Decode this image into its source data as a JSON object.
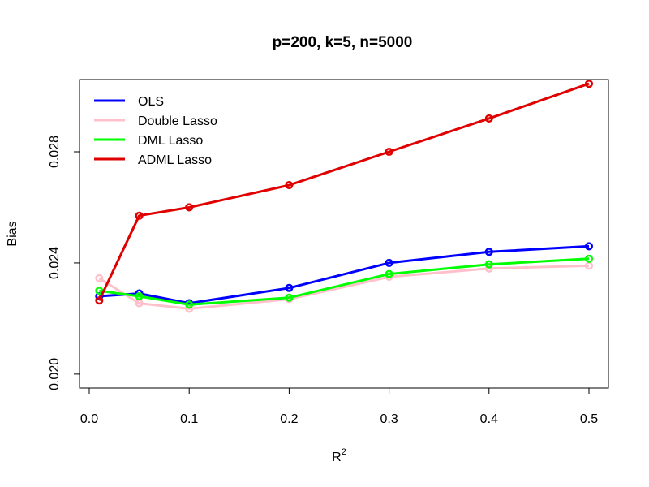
{
  "chart_data": {
    "type": "line",
    "title": "p=200, k=5, n=5000",
    "xlabel": "R",
    "xlabel_superscript": "2",
    "ylabel": "Bias",
    "x": [
      0.01,
      0.05,
      0.1,
      0.2,
      0.3,
      0.4,
      0.5
    ],
    "xlim": [
      0.0,
      0.5
    ],
    "ylim": [
      0.0195,
      0.0306
    ],
    "x_ticks": [
      "0.0",
      "0.1",
      "0.2",
      "0.3",
      "0.4",
      "0.5"
    ],
    "y_ticks": [
      "0.020",
      "0.024",
      "0.028"
    ],
    "grid": false,
    "legend_position": "top-left",
    "series": [
      {
        "name": "OLS",
        "color": "#0000FF",
        "values": [
          0.0228,
          0.0229,
          0.02255,
          0.0231,
          0.024,
          0.0244,
          0.0246
        ]
      },
      {
        "name": "Double Lasso",
        "color": "#FFC0CB",
        "values": [
          0.02345,
          0.02255,
          0.02235,
          0.0227,
          0.0235,
          0.0238,
          0.0239
        ]
      },
      {
        "name": "DML Lasso",
        "color": "#00FF00",
        "values": [
          0.023,
          0.0228,
          0.0225,
          0.02275,
          0.0236,
          0.02395,
          0.02415
        ]
      },
      {
        "name": "ADML Lasso",
        "color": "#E00000",
        "values": [
          0.02265,
          0.0257,
          0.026,
          0.0268,
          0.028,
          0.0292,
          0.03045
        ]
      }
    ]
  }
}
